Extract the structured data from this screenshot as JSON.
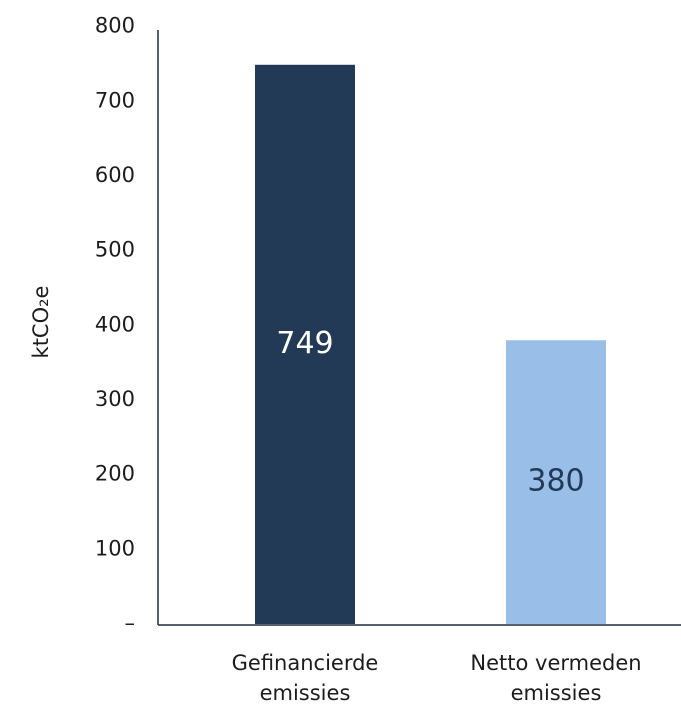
{
  "chart_data": {
    "type": "bar",
    "y_label": "ktCO₂e",
    "categories": [
      "Gefinancierde emissies",
      "Netto vermeden emissies"
    ],
    "values": [
      749,
      380
    ],
    "colors": [
      "#223a55",
      "#99bfe8"
    ],
    "value_label_colors": [
      "#ffffff",
      "#223a55"
    ],
    "ylim": [
      0,
      800
    ],
    "yticks": [
      {
        "value": 0,
        "label": "–"
      },
      100,
      200,
      300,
      400,
      500,
      600,
      700,
      800
    ],
    "grid": false
  }
}
